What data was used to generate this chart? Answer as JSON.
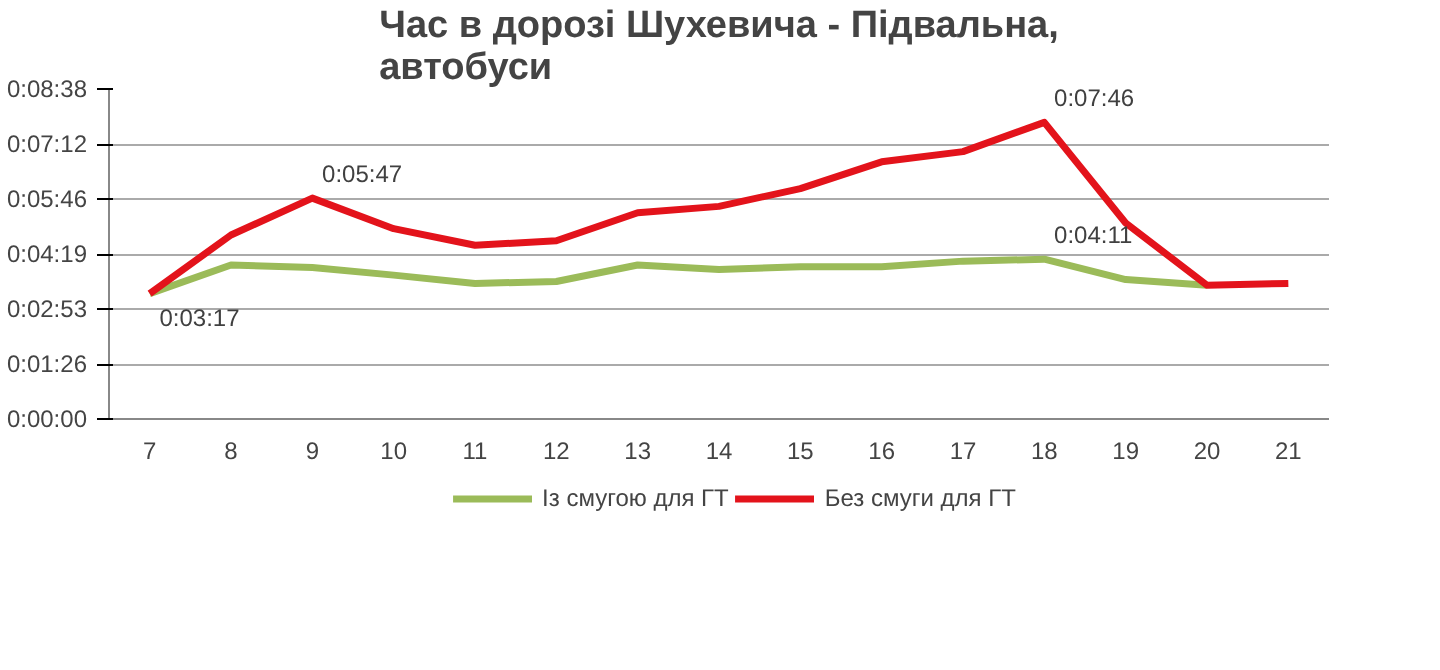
{
  "chart_data": {
    "type": "line",
    "title": "Час в дорозі Шухевича - Підвальна,\nавтобуси",
    "categories": [
      "7",
      "8",
      "9",
      "10",
      "11",
      "12",
      "13",
      "14",
      "15",
      "16",
      "17",
      "18",
      "19",
      "20",
      "21"
    ],
    "series": [
      {
        "name": "Із смугою для ГТ",
        "color": "#9bbb59",
        "values": [
          197,
          242,
          238,
          226,
          213,
          216,
          242,
          235,
          239,
          239,
          248,
          251,
          219,
          210,
          null
        ]
      },
      {
        "name": "Без смуги для ГТ",
        "color": "#e3131b",
        "values": [
          197,
          289,
          347,
          299,
          273,
          280,
          324,
          334,
          362,
          404,
          420,
          466,
          308,
          210,
          213
        ]
      }
    ],
    "ylim": [
      0,
      518.4
    ],
    "yticks": [
      {
        "value": 0,
        "label": "0:00:00"
      },
      {
        "value": 86.4,
        "label": "0:01:26"
      },
      {
        "value": 172.8,
        "label": "0:02:53"
      },
      {
        "value": 259.2,
        "label": "0:04:19"
      },
      {
        "value": 345.6,
        "label": "0:05:46"
      },
      {
        "value": 432,
        "label": "0:07:12"
      },
      {
        "value": 518.4,
        "label": "0:08:38"
      }
    ],
    "annotations": [
      {
        "text": "0:03:17",
        "x": "7",
        "y": 197
      },
      {
        "text": "0:05:47",
        "x": "9",
        "y": 347
      },
      {
        "text": "0:04:11",
        "x": "18",
        "y": 251
      },
      {
        "text": "0:07:46",
        "x": "18",
        "y": 466
      }
    ],
    "grid": "y",
    "legend": "bottom",
    "marker": "none",
    "line_style": "solid"
  }
}
